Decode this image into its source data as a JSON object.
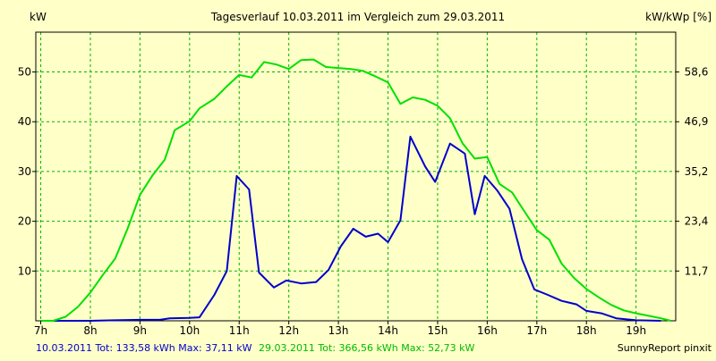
{
  "chart_data": {
    "type": "line",
    "title": "Tagesverlauf 10.03.2011 im Vergleich zum 29.03.2011",
    "ylabel_left": "kW",
    "ylabel_right": "kW/kWp [%]",
    "x_ticks": [
      "7h",
      "8h",
      "9h",
      "10h",
      "11h",
      "12h",
      "13h",
      "14h",
      "15h",
      "16h",
      "17h",
      "18h",
      "19h"
    ],
    "xlim": [
      6.9,
      19.8
    ],
    "ylim": [
      0,
      58
    ],
    "y_ticks_left": [
      "10",
      "20",
      "30",
      "40",
      "50"
    ],
    "y_ticks_right": [
      "11,7",
      "23,4",
      "35,2",
      "46,9",
      "58,6"
    ],
    "grid": true,
    "series": [
      {
        "legend": "10.03.2011 Tot: 133,58 kWh Max: 37,11 kW",
        "color": "#0000cc",
        "x": [
          7.0,
          7.5,
          8.0,
          8.5,
          9.0,
          9.4,
          9.6,
          10.0,
          10.2,
          10.5,
          10.75,
          10.95,
          11.2,
          11.4,
          11.7,
          11.95,
          12.25,
          12.55,
          12.8,
          13.05,
          13.3,
          13.55,
          13.8,
          14.0,
          14.25,
          14.45,
          14.75,
          14.95,
          15.25,
          15.55,
          15.75,
          15.95,
          16.2,
          16.45,
          16.7,
          16.95,
          17.2,
          17.5,
          17.8,
          18.0,
          18.3,
          18.6,
          19.0,
          19.5
        ],
        "y": [
          0,
          0,
          0,
          0.1,
          0.2,
          0.2,
          0.5,
          0.6,
          0.7,
          5.2,
          10.0,
          29.1,
          26.4,
          9.7,
          6.7,
          8.1,
          7.5,
          7.8,
          10.2,
          15.0,
          18.5,
          16.9,
          17.5,
          15.8,
          20.2,
          37.0,
          31.0,
          27.9,
          35.6,
          33.6,
          21.4,
          29.1,
          26.2,
          22.5,
          12.4,
          6.3,
          5.3,
          4.0,
          3.3,
          2.0,
          1.5,
          0.5,
          0.1,
          0
        ],
        "color_hex": "#0000cc"
      },
      {
        "legend": "29.03.2011 Tot: 366,56 kWh Max: 52,73 kW",
        "color": "#00e000",
        "x": [
          7.0,
          7.25,
          7.5,
          7.75,
          8.0,
          8.25,
          8.5,
          8.75,
          9.0,
          9.25,
          9.5,
          9.7,
          10.0,
          10.2,
          10.5,
          10.75,
          11.0,
          11.25,
          11.5,
          11.75,
          12.0,
          12.25,
          12.5,
          12.75,
          13.0,
          13.25,
          13.5,
          13.75,
          14.0,
          14.25,
          14.5,
          14.75,
          15.0,
          15.25,
          15.5,
          15.75,
          16.0,
          16.25,
          16.5,
          16.75,
          17.0,
          17.25,
          17.5,
          17.75,
          18.0,
          18.25,
          18.5,
          18.75,
          19.0,
          19.25,
          19.5,
          19.7
        ],
        "y": [
          0,
          0,
          0.8,
          2.8,
          5.7,
          9.2,
          12.5,
          18.5,
          25.3,
          29.2,
          32.4,
          38.3,
          40.1,
          42.7,
          44.6,
          47.1,
          49.4,
          48.9,
          52.0,
          51.5,
          50.6,
          52.4,
          52.5,
          51.0,
          50.8,
          50.6,
          50.2,
          49.1,
          47.9,
          43.6,
          44.9,
          44.4,
          43.2,
          40.7,
          35.7,
          32.6,
          32.9,
          27.5,
          25.8,
          22.0,
          18.2,
          16.3,
          11.5,
          8.6,
          6.4,
          4.7,
          3.2,
          2.1,
          1.5,
          1.0,
          0.5,
          0
        ],
        "color_hex": "#00e000"
      }
    ]
  },
  "footer": {
    "legend_blue": "10.03.2011 Tot: 133,58 kWh Max: 37,11 kW",
    "legend_green": "29.03.2011 Tot: 366,56 kWh Max: 52,73 kW",
    "credit": "SunnyReport pinxit"
  }
}
